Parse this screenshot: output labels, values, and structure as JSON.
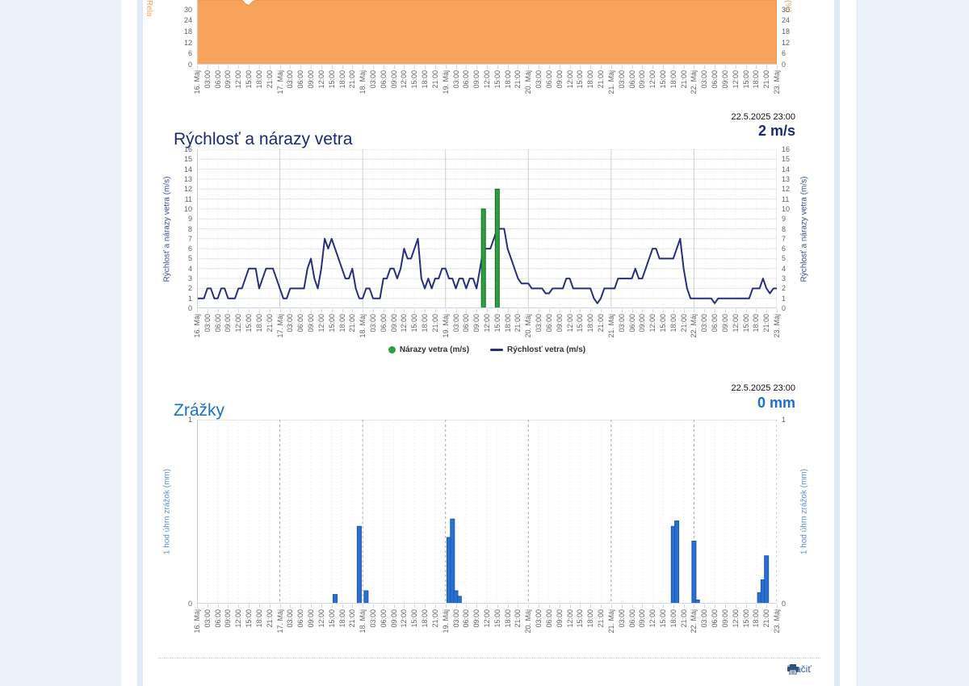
{
  "page": {
    "bg": "#eaf1f9",
    "panel_bg": "#ffffff",
    "rail_color": "#dfeaf6"
  },
  "time_axis": {
    "labels": [
      "16. Máj",
      "03:00",
      "06:00",
      "09:00",
      "12:00",
      "15:00",
      "18:00",
      "21:00",
      "17. Máj",
      "03:00",
      "06:00",
      "09:00",
      "12:00",
      "15:00",
      "18:00",
      "21:00",
      "18. Máj",
      "03:00",
      "06:00",
      "09:00",
      "12:00",
      "15:00",
      "18:00",
      "21:00",
      "19. Máj",
      "03:00",
      "06:00",
      "09:00",
      "12:00",
      "15:00",
      "18:00",
      "21:00",
      "20. Máj",
      "03:00",
      "06:00",
      "09:00",
      "12:00",
      "15:00",
      "18:00",
      "21:00",
      "21. Máj",
      "03:00",
      "06:00",
      "09:00",
      "12:00",
      "15:00",
      "18:00",
      "21:00",
      "22. Máj",
      "03:00",
      "06:00",
      "09:00",
      "12:00",
      "15:00",
      "18:00",
      "21:00",
      "23. Máj"
    ]
  },
  "charts": {
    "humidity": {
      "axis_title": "Relatívna vlhkosť (%)",
      "right_axis_fragment": "(%)",
      "yticks": [
        0,
        6,
        12,
        18,
        24,
        30
      ]
    },
    "wind": {
      "title": "Rýchlosť a nárazy vetra",
      "timestamp": "22.5.2025 23:00",
      "current_value": "2 m/s",
      "axis_title": "Rýchlosť a nárazy vetra (m/s)",
      "legend": [
        {
          "label": "Nárazy vetra (m/s)",
          "marker": "green-dot"
        },
        {
          "label": "Rýchlosť vetra (m/s)",
          "marker": "navy-line"
        }
      ]
    },
    "precip": {
      "title": "Zrážky",
      "timestamp": "22.5.2025 23:00",
      "current_value": "0 mm",
      "axis_title": "1 hod úhrn zrážok (mm)",
      "yticks": [
        0,
        1
      ]
    }
  },
  "footer": {
    "print_label": "Tlačiť",
    "print_icon": "printer-icon"
  },
  "chart_data": [
    {
      "id": "humidity",
      "type": "area",
      "title": "Relatívna vlhkosť",
      "ylabel": "Relatívna vlhkosť (%)",
      "color": "#f7a35c",
      "x_start": "16. Máj 00:00",
      "x_step_hours": 1,
      "points_count": 169,
      "visible_ylim": [
        0,
        34
      ],
      "yticks_visible": [
        0,
        6,
        12,
        18,
        24,
        30
      ],
      "note": "chart cropped by top of screenshot; area filled above visible range except short dip on 16. Máj afternoon",
      "values": {
        "default": 98,
        "overrides": {
          "12": 85,
          "13": 40,
          "14": 33,
          "15": 32,
          "16": 34,
          "17": 60,
          "18": 95
        }
      }
    },
    {
      "id": "wind",
      "type": "line",
      "title": "Rýchlosť a nárazy vetra",
      "timestamp": "22.5.2025 23:00",
      "current_value": "2 m/s",
      "ylabel": "Rýchlosť a nárazy vetra (m/s)",
      "ylim": [
        0,
        16
      ],
      "ytick_step": 1,
      "x_start": "16. Máj 00:00",
      "x_step_hours": 1,
      "series": [
        {
          "name": "Rýchlosť vetra (m/s)",
          "type": "line",
          "color": "#272e7d",
          "values_hourly": [
            1,
            1,
            1,
            2,
            2,
            1,
            1,
            2,
            2,
            1,
            1,
            1,
            2,
            2,
            3,
            4,
            4,
            4,
            2,
            3,
            4,
            4,
            4,
            3,
            2,
            1,
            1,
            2,
            2,
            2,
            2,
            2,
            4,
            5,
            3,
            2,
            4,
            7,
            6,
            7,
            6,
            5,
            4,
            3,
            3,
            4,
            2,
            1,
            1,
            2,
            2,
            1,
            1,
            1,
            3,
            3,
            4,
            4,
            3,
            4,
            6,
            5,
            5,
            6,
            7,
            3,
            2,
            3,
            2,
            3,
            3,
            4,
            4,
            3,
            3,
            2,
            3,
            3,
            2,
            3,
            3,
            2,
            4,
            6,
            6,
            6,
            7,
            8,
            8,
            8,
            6,
            5,
            4,
            3,
            2.5,
            2.5,
            2.5,
            2,
            2,
            2,
            2,
            1.5,
            1.5,
            2,
            2,
            2,
            2,
            3,
            3,
            2,
            2,
            2,
            2,
            2,
            2,
            1,
            0.5,
            1,
            2,
            2,
            2,
            2,
            3,
            3,
            3,
            3,
            3,
            4,
            3,
            3,
            4,
            5,
            6,
            6,
            5,
            5,
            5,
            5,
            5,
            6,
            7,
            4,
            2,
            1,
            1,
            1,
            1,
            1,
            1,
            1,
            0.5,
            1,
            1,
            1,
            1,
            1,
            1,
            1,
            1,
            1,
            1,
            2,
            2,
            2,
            3,
            2,
            1.5,
            2,
            2
          ]
        },
        {
          "name": "Nárazy vetra (m/s)",
          "type": "column",
          "color": "#2f9e41",
          "border_color": "#156a20",
          "points": [
            {
              "hour": 83,
              "label": "19. Máj 11:00",
              "value": 10
            },
            {
              "hour": 87,
              "label": "19. Máj 15:00",
              "value": 12
            }
          ]
        }
      ]
    },
    {
      "id": "precip",
      "type": "bar",
      "title": "Zrážky",
      "timestamp": "22.5.2025 23:00",
      "current_value": "0 mm",
      "ylabel": "1 hod úhrn zrážok (mm)",
      "ylim": [
        0,
        1
      ],
      "yticks": [
        0,
        1
      ],
      "x_start": "16. Máj 00:00",
      "x_step_hours": 1,
      "series": [
        {
          "name": "1 hod úhrn zrážok (mm)",
          "color": "#2a6fd2",
          "border_color": "#1e57ab",
          "points": [
            {
              "hour": 40,
              "label": "17. Máj 16:00",
              "value": 0.05
            },
            {
              "hour": 47,
              "label": "17. Máj 23:00",
              "value": 0.42
            },
            {
              "hour": 49,
              "label": "18. Máj 01:00",
              "value": 0.07
            },
            {
              "hour": 73,
              "label": "19. Máj 01:00",
              "value": 0.36
            },
            {
              "hour": 74,
              "label": "19. Máj 02:00",
              "value": 0.46
            },
            {
              "hour": 75,
              "label": "19. Máj 03:00",
              "value": 0.07
            },
            {
              "hour": 76,
              "label": "19. Máj 04:00",
              "value": 0.04
            },
            {
              "hour": 138,
              "label": "21. Máj 18:00",
              "value": 0.42
            },
            {
              "hour": 139,
              "label": "21. Máj 19:00",
              "value": 0.45
            },
            {
              "hour": 144,
              "label": "22. Máj 00:00",
              "value": 0.34
            },
            {
              "hour": 145,
              "label": "22. Máj 01:00",
              "value": 0.02
            },
            {
              "hour": 163,
              "label": "22. Máj 19:00",
              "value": 0.06
            },
            {
              "hour": 164,
              "label": "22. Máj 20:00",
              "value": 0.13
            },
            {
              "hour": 165,
              "label": "22. Máj 21:00",
              "value": 0.26
            }
          ]
        }
      ]
    }
  ]
}
